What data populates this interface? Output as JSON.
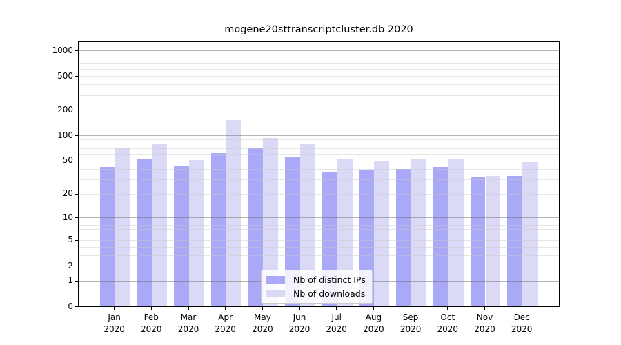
{
  "chart_data": {
    "type": "bar",
    "title": "mogene20sttranscriptcluster.db 2020",
    "categories": [
      "Jan",
      "Feb",
      "Mar",
      "Apr",
      "May",
      "Jun",
      "Jul",
      "Aug",
      "Sep",
      "Oct",
      "Nov",
      "Dec"
    ],
    "category_year": "2020",
    "series": [
      {
        "name": "Nb of distinct IPs",
        "color": "#a9a9f7",
        "values": [
          42,
          53,
          43,
          62,
          72,
          55,
          37,
          39,
          40,
          42,
          32,
          33
        ]
      },
      {
        "name": "Nb of downloads",
        "color": "#dadaf7",
        "values": [
          72,
          78,
          51,
          153,
          93,
          78,
          52,
          50,
          52,
          52,
          33,
          48
        ]
      }
    ],
    "y_ticks": [
      0,
      1,
      2,
      5,
      10,
      20,
      50,
      100,
      200,
      500,
      1000
    ],
    "y_scale": "log1p",
    "ylim": [
      0,
      1274
    ],
    "grid": true,
    "legend_position": "bottom-center"
  },
  "colors": {
    "background": "#ffffff",
    "axis": "#000000",
    "major_grid": "rgba(110,110,110,0.5)",
    "minor_grid": "rgba(200,200,200,0.45)"
  }
}
